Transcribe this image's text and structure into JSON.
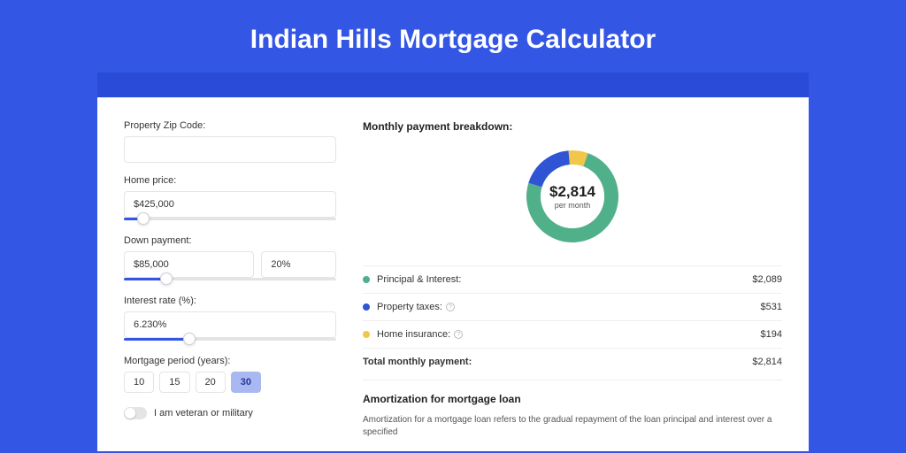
{
  "page": {
    "title": "Indian Hills Mortgage Calculator",
    "bg_color": "#3356e4",
    "accent_bar_color": "#2a4bd7",
    "card_bg": "#ffffff"
  },
  "form": {
    "zip": {
      "label": "Property Zip Code:",
      "value": ""
    },
    "home_price": {
      "label": "Home price:",
      "value": "$425,000",
      "slider_pct": 9
    },
    "down_payment": {
      "label": "Down payment:",
      "value": "$85,000",
      "pct_value": "20%",
      "slider_pct": 20
    },
    "interest_rate": {
      "label": "Interest rate (%):",
      "value": "6.230%",
      "slider_pct": 31
    },
    "period": {
      "label": "Mortgage period (years):",
      "options": [
        "10",
        "15",
        "20",
        "30"
      ],
      "selected": "30"
    },
    "veteran": {
      "label": "I am veteran or military",
      "checked": false
    }
  },
  "breakdown": {
    "title": "Monthly payment breakdown:",
    "center_amount": "$2,814",
    "center_sub": "per month",
    "donut": {
      "colors": {
        "pi": "#4fb08a",
        "tax": "#2f55d4",
        "ins": "#f0c748"
      },
      "values": {
        "pi": 2089,
        "tax": 531,
        "ins": 194
      },
      "bg": "#ffffff",
      "ring_width": 16
    },
    "items": [
      {
        "key": "pi",
        "label": "Principal & Interest:",
        "value": "$2,089",
        "info": false,
        "color": "#4fb08a"
      },
      {
        "key": "tax",
        "label": "Property taxes:",
        "value": "$531",
        "info": true,
        "color": "#2f55d4"
      },
      {
        "key": "ins",
        "label": "Home insurance:",
        "value": "$194",
        "info": true,
        "color": "#f0c748"
      }
    ],
    "total": {
      "label": "Total monthly payment:",
      "value": "$2,814"
    }
  },
  "amortization": {
    "title": "Amortization for mortgage loan",
    "text": "Amortization for a mortgage loan refers to the gradual repayment of the loan principal and interest over a specified"
  }
}
